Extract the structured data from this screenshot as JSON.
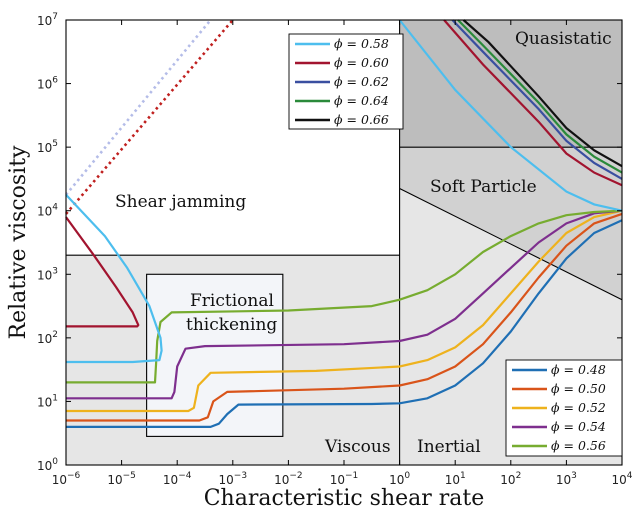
{
  "chart_data": {
    "type": "line",
    "xlabel": "Characteristic shear rate",
    "ylabel": "Relative viscosity",
    "xscale": "log",
    "yscale": "log",
    "xlim": [
      1e-06,
      10000.0
    ],
    "ylim": [
      1,
      10000000.0
    ],
    "x_tick_exponents": [
      -6,
      -5,
      -4,
      -3,
      -2,
      -1,
      0,
      1,
      2,
      3,
      4
    ],
    "y_tick_exponents": [
      0,
      1,
      2,
      3,
      4,
      5,
      6,
      7
    ],
    "tick_base": "10",
    "regions": [
      {
        "label": "Shear jamming",
        "color": "#ffffff"
      },
      {
        "label": "Frictional thickening",
        "label_lines": [
          "Frictional",
          "thickening"
        ],
        "color": "#f3f5f9"
      },
      {
        "label": "Viscous",
        "color": "#e6e6e6"
      },
      {
        "label": "Inertial",
        "color": "#e6e6e6"
      },
      {
        "label": "Soft Particle",
        "color": "#d1d1d1"
      },
      {
        "label": "Quasistatic",
        "color": "#bdbdbd"
      }
    ],
    "legend_upper": {
      "placement": "top-center",
      "entries": [
        "ϕ = 0.58",
        "ϕ = 0.60",
        "ϕ = 0.62",
        "ϕ = 0.64",
        "ϕ = 0.66"
      ]
    },
    "legend_lower": {
      "placement": "bottom-right",
      "entries": [
        "ϕ = 0.48",
        "ϕ = 0.50",
        "ϕ = 0.52",
        "ϕ = 0.54",
        "ϕ = 0.56"
      ]
    },
    "series": [
      {
        "name": "ϕ = 0.48",
        "color": "#1f6fb4",
        "points": [
          [
            -6,
            0.6
          ],
          [
            -3.4,
            0.6
          ],
          [
            -3.25,
            0.65
          ],
          [
            -3.1,
            0.8
          ],
          [
            -2.9,
            0.95
          ],
          [
            -0.5,
            0.96
          ],
          [
            0,
            0.97
          ],
          [
            0.5,
            1.05
          ],
          [
            1,
            1.25
          ],
          [
            1.5,
            1.6
          ],
          [
            2,
            2.1
          ],
          [
            2.5,
            2.7
          ],
          [
            3,
            3.25
          ],
          [
            3.5,
            3.65
          ],
          [
            4,
            3.85
          ]
        ]
      },
      {
        "name": "ϕ = 0.50",
        "color": "#d9541a",
        "points": [
          [
            -6,
            0.7
          ],
          [
            -3.6,
            0.7
          ],
          [
            -3.45,
            0.75
          ],
          [
            -3.35,
            1.0
          ],
          [
            -3.1,
            1.15
          ],
          [
            -1,
            1.2
          ],
          [
            0,
            1.25
          ],
          [
            0.5,
            1.35
          ],
          [
            1,
            1.55
          ],
          [
            1.5,
            1.9
          ],
          [
            2,
            2.4
          ],
          [
            2.5,
            2.95
          ],
          [
            3,
            3.45
          ],
          [
            3.5,
            3.8
          ],
          [
            4,
            3.95
          ]
        ]
      },
      {
        "name": "ϕ = 0.52",
        "color": "#eeb21d",
        "points": [
          [
            -6,
            0.85
          ],
          [
            -3.8,
            0.85
          ],
          [
            -3.7,
            0.9
          ],
          [
            -3.62,
            1.25
          ],
          [
            -3.4,
            1.45
          ],
          [
            -1.5,
            1.48
          ],
          [
            0,
            1.55
          ],
          [
            0.5,
            1.65
          ],
          [
            1,
            1.85
          ],
          [
            1.5,
            2.2
          ],
          [
            2,
            2.7
          ],
          [
            2.5,
            3.2
          ],
          [
            3,
            3.65
          ],
          [
            3.5,
            3.9
          ],
          [
            4,
            4.0
          ]
        ]
      },
      {
        "name": "ϕ = 0.54",
        "color": "#7e2f8e",
        "points": [
          [
            -6,
            1.05
          ],
          [
            -4.1,
            1.05
          ],
          [
            -4.05,
            1.15
          ],
          [
            -4.0,
            1.55
          ],
          [
            -3.85,
            1.83
          ],
          [
            -3.5,
            1.87
          ],
          [
            -1,
            1.9
          ],
          [
            0,
            1.95
          ],
          [
            0.5,
            2.05
          ],
          [
            1,
            2.3
          ],
          [
            1.5,
            2.7
          ],
          [
            2,
            3.1
          ],
          [
            2.5,
            3.5
          ],
          [
            3,
            3.8
          ],
          [
            3.5,
            3.96
          ],
          [
            4,
            4.0
          ]
        ]
      },
      {
        "name": "ϕ = 0.56",
        "color": "#77ac30",
        "points": [
          [
            -6,
            1.3
          ],
          [
            -4.4,
            1.3
          ],
          [
            -4.38,
            1.6
          ],
          [
            -4.36,
            1.95
          ],
          [
            -4.3,
            2.25
          ],
          [
            -4.1,
            2.4
          ],
          [
            -2,
            2.43
          ],
          [
            -0.5,
            2.5
          ],
          [
            0,
            2.6
          ],
          [
            0.5,
            2.75
          ],
          [
            1,
            3.0
          ],
          [
            1.5,
            3.35
          ],
          [
            2,
            3.6
          ],
          [
            2.5,
            3.8
          ],
          [
            3,
            3.93
          ],
          [
            3.5,
            3.98
          ],
          [
            4,
            4.0
          ]
        ]
      },
      {
        "name": "ϕ = 0.58",
        "color": "#4dbeee",
        "points": [
          [
            -6,
            4.25
          ],
          [
            -5.3,
            3.6
          ],
          [
            -4.9,
            3.1
          ],
          [
            -4.5,
            2.5
          ],
          [
            -4.3,
            2.0
          ],
          [
            -4.28,
            1.8
          ],
          [
            -4.32,
            1.65
          ],
          [
            -4.8,
            1.62
          ],
          [
            -6,
            1.62
          ]
        ],
        "upper_branch": [
          [
            0,
            7.0
          ],
          [
            1,
            5.9
          ],
          [
            2,
            5.0
          ],
          [
            3,
            4.3
          ],
          [
            3.5,
            4.1
          ],
          [
            4,
            4.0
          ]
        ],
        "jam_line": [
          [
            -6,
            4.25
          ],
          [
            -3.4,
            7.0
          ]
        ],
        "jam_color": "#b4bce8"
      },
      {
        "name": "ϕ = 0.60",
        "color": "#a2142f",
        "points": [
          [
            -6,
            3.9
          ],
          [
            -5.5,
            3.3
          ],
          [
            -5.1,
            2.8
          ],
          [
            -4.8,
            2.4
          ],
          [
            -4.7,
            2.2
          ],
          [
            -4.72,
            2.18
          ],
          [
            -5.0,
            2.18
          ],
          [
            -6,
            2.18
          ]
        ],
        "upper_branch": [
          [
            0.8,
            7.0
          ],
          [
            1.5,
            6.3
          ],
          [
            2.5,
            5.4
          ],
          [
            3,
            4.9
          ],
          [
            3.5,
            4.6
          ],
          [
            4,
            4.4
          ]
        ],
        "jam_line": [
          [
            -6,
            3.95
          ],
          [
            -3.0,
            7.0
          ]
        ],
        "jam_color": "#c0201f"
      },
      {
        "name": "ϕ = 0.62",
        "color": "#3a4fa0",
        "points": [],
        "upper_branch": [
          [
            0.95,
            7.0
          ],
          [
            1.5,
            6.5
          ],
          [
            2.5,
            5.6
          ],
          [
            3,
            5.1
          ],
          [
            3.5,
            4.75
          ],
          [
            4,
            4.5
          ]
        ]
      },
      {
        "name": "ϕ = 0.64",
        "color": "#2a8a3a",
        "points": [],
        "upper_branch": [
          [
            1.05,
            7.0
          ],
          [
            1.5,
            6.6
          ],
          [
            2.5,
            5.7
          ],
          [
            3,
            5.2
          ],
          [
            3.5,
            4.85
          ],
          [
            4,
            4.6
          ]
        ]
      },
      {
        "name": "ϕ = 0.66",
        "color": "#111111",
        "points": [],
        "upper_branch": [
          [
            1.15,
            7.0
          ],
          [
            1.6,
            6.65
          ],
          [
            2.5,
            5.8
          ],
          [
            3,
            5.3
          ],
          [
            3.5,
            4.95
          ],
          [
            4,
            4.7
          ]
        ]
      }
    ]
  }
}
